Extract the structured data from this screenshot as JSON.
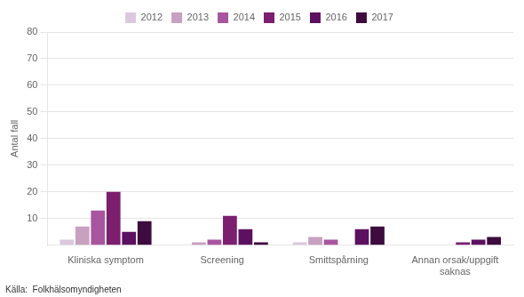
{
  "chart_data": {
    "type": "bar",
    "categories": [
      "Kliniska symptom",
      "Screening",
      "Smittspårning",
      "Annan orsak/uppgift\nsaknas"
    ],
    "series": [
      {
        "name": "2012",
        "color": "#dcc8de",
        "values": [
          2,
          0,
          1,
          0
        ]
      },
      {
        "name": "2013",
        "color": "#c8a0c0",
        "values": [
          7,
          1,
          3,
          0
        ]
      },
      {
        "name": "2014",
        "color": "#a855a0",
        "values": [
          13,
          2,
          2,
          0
        ]
      },
      {
        "name": "2015",
        "color": "#7b1f6e",
        "values": [
          20,
          11,
          0,
          1
        ]
      },
      {
        "name": "2016",
        "color": "#5c1060",
        "values": [
          5,
          6,
          6,
          2
        ]
      },
      {
        "name": "2017",
        "color": "#3d0b3d",
        "values": [
          9,
          1,
          7,
          3
        ]
      }
    ],
    "ylabel": "Antal fall",
    "ylim": [
      0,
      80
    ],
    "yticks": [
      10,
      20,
      30,
      40,
      50,
      60,
      70,
      80
    ],
    "annotations": [
      "Källa:  Folkhälsomyndigheten"
    ],
    "grid": true,
    "legend": "top"
  }
}
